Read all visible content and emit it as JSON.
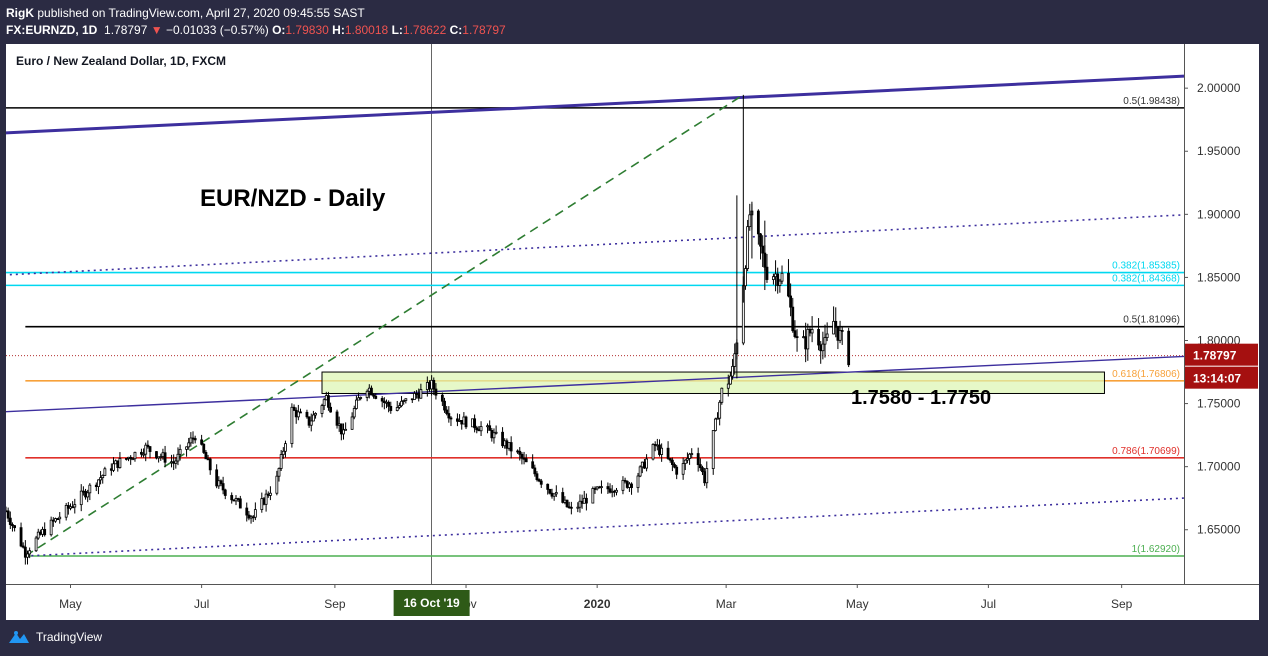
{
  "header": {
    "author": "RigK",
    "published": "published on TradingView.com, April 27, 2020 09:45:55 SAST",
    "symbol": "FX:EURNZD, 1D",
    "last": "1.78797",
    "down_arrow": "▼",
    "change": "−0.01033 (−0.57%)",
    "open_label": "O:",
    "open": "1.79830",
    "high_label": "H:",
    "high": "1.80018",
    "low_label": "L:",
    "low": "1.78622",
    "close_label": "C:",
    "close": "1.78797"
  },
  "footer": {
    "brand": "TradingView",
    "logo_icon": "tradingview-logo-icon"
  },
  "colors": {
    "background": "#ffffff",
    "frame": "#2b2b43",
    "up": "#26a69a",
    "down": "#ef5350",
    "candle": "#000000",
    "trendline": "#3d2f9e",
    "fib_black": "#000000",
    "fib_cyan": "#00d8f0",
    "fib_orange": "#f7a13a",
    "fib_red": "#e0302a",
    "fib_green": "#4caf50",
    "fib_dash": "#2e7d32",
    "zone_fill": "#dcf5b0",
    "price_badge": "#a51010"
  },
  "chart_data": {
    "type": "candlestick",
    "title": "Euro / New Zealand Dollar, 1D, FXCM",
    "annotation_title": "EUR/NZD - Daily",
    "zone_label": "1.7580 - 1.7750",
    "zone": {
      "low": 1.758,
      "high": 1.775,
      "start": "2019-08-26",
      "end": "2020-08-24"
    },
    "ylim": [
      1.607,
      2.035
    ],
    "xlim": [
      "2019-04-01",
      "2020-09-30"
    ],
    "y_ticks": [
      "2.00000",
      "1.95000",
      "1.90000",
      "1.85000",
      "1.80000",
      "1.75000",
      "1.70000",
      "1.65000"
    ],
    "x_ticks": [
      {
        "date": "2019-05-01",
        "label": "May"
      },
      {
        "date": "2019-07-01",
        "label": "Jul"
      },
      {
        "date": "2019-09-01",
        "label": "Sep"
      },
      {
        "date": "2019-11-01",
        "label": "Nov"
      },
      {
        "date": "2020-01-01",
        "label": "2020",
        "bold": true
      },
      {
        "date": "2020-03-01",
        "label": "Mar"
      },
      {
        "date": "2020-05-01",
        "label": "May"
      },
      {
        "date": "2020-07-01",
        "label": "Jul"
      },
      {
        "date": "2020-09-01",
        "label": "Sep"
      }
    ],
    "crosshair": {
      "date": "2019-10-16",
      "label": "16 Oct '19"
    },
    "last_price": {
      "value": 1.78797,
      "label": "1.78797",
      "countdown": "13:14:07"
    },
    "fib_levels": [
      {
        "value": 1.98438,
        "label": "0.5(1.98438)",
        "color": "#000000",
        "start": "2019-04-01"
      },
      {
        "value": 1.85385,
        "label": "0.382(1.85385)",
        "color": "#00d8f0",
        "start": "2019-04-01"
      },
      {
        "value": 1.84368,
        "label": "0.382(1.84368)",
        "color": "#00d8f0",
        "start": "2019-04-01"
      },
      {
        "value": 1.81096,
        "label": "0.5(1.81096)",
        "color": "#000000",
        "start": "2019-04-10"
      },
      {
        "value": 1.76806,
        "label": "0.618(1.76806)",
        "color": "#f7a13a",
        "start": "2019-04-10"
      },
      {
        "value": 1.70699,
        "label": "0.786(1.70699)",
        "color": "#e0302a",
        "start": "2019-04-10"
      },
      {
        "value": 1.6292,
        "label": "1(1.62920)",
        "color": "#4caf50",
        "start": "2019-04-10"
      }
    ],
    "trendlines": [
      {
        "from": [
          "2019-03-31",
          1.9645
        ],
        "to": [
          "2020-09-30",
          2.0095
        ],
        "style": "solid",
        "width": 3
      },
      {
        "from": [
          "2019-03-31",
          1.7435
        ],
        "to": [
          "2020-09-30",
          1.7874
        ],
        "style": "solid",
        "width": 1.4
      },
      {
        "from": [
          "2019-03-31",
          1.8519
        ],
        "to": [
          "2020-09-30",
          1.8996
        ],
        "style": "dotted",
        "width": 1.6
      },
      {
        "from": [
          "2019-04-10",
          1.6292
        ],
        "to": [
          "2020-09-30",
          1.6751
        ],
        "style": "dotted",
        "width": 1.6
      },
      {
        "from": [
          "2019-04-10",
          1.6292
        ],
        "to": [
          "2020-03-09",
          1.9947
        ],
        "style": "dashed",
        "width": 1.6,
        "color": "#2e7d32"
      },
      {
        "from": [
          "2020-03-09",
          1.9947
        ],
        "to": [
          "2020-03-09",
          1.9947
        ],
        "style": "solid",
        "width": 1
      }
    ],
    "close_path": [
      [
        "2019-04-01",
        1.665
      ],
      [
        "2019-04-10",
        1.632
      ],
      [
        "2019-04-18",
        1.648
      ],
      [
        "2019-05-05",
        1.675
      ],
      [
        "2019-05-20",
        1.7
      ],
      [
        "2019-06-05",
        1.715
      ],
      [
        "2019-06-18",
        1.703
      ],
      [
        "2019-06-28",
        1.725
      ],
      [
        "2019-07-08",
        1.687
      ],
      [
        "2019-07-25",
        1.66
      ],
      [
        "2019-08-05",
        1.69
      ],
      [
        "2019-08-12",
        1.745
      ],
      [
        "2019-08-20",
        1.735
      ],
      [
        "2019-08-28",
        1.755
      ],
      [
        "2019-09-05",
        1.725
      ],
      [
        "2019-09-15",
        1.765
      ],
      [
        "2019-09-28",
        1.745
      ],
      [
        "2019-10-16",
        1.765
      ],
      [
        "2019-10-25",
        1.74
      ],
      [
        "2019-11-10",
        1.73
      ],
      [
        "2019-11-25",
        1.71
      ],
      [
        "2019-12-08",
        1.685
      ],
      [
        "2019-12-20",
        1.665
      ],
      [
        "2019-12-31",
        1.68
      ],
      [
        "2020-01-18",
        1.688
      ],
      [
        "2020-01-28",
        1.717
      ],
      [
        "2020-02-08",
        1.695
      ],
      [
        "2020-02-15",
        1.715
      ],
      [
        "2020-02-20",
        1.69
      ],
      [
        "2020-02-28",
        1.76
      ],
      [
        "2020-03-04",
        1.775
      ],
      [
        "2020-03-08",
        1.83
      ],
      [
        "2020-03-12",
        1.9
      ],
      [
        "2020-03-20",
        1.855
      ],
      [
        "2020-03-28",
        1.85
      ],
      [
        "2020-04-04",
        1.79
      ],
      [
        "2020-04-10",
        1.81
      ],
      [
        "2020-04-16",
        1.795
      ],
      [
        "2020-04-20",
        1.815
      ],
      [
        "2020-04-27",
        1.788
      ]
    ],
    "spikes": [
      {
        "date": "2020-03-06",
        "high": 1.915,
        "low": 1.77
      },
      {
        "date": "2020-03-09",
        "high": 1.9947,
        "low": 1.83
      },
      {
        "date": "2020-03-13",
        "high": 1.91,
        "low": 1.865
      },
      {
        "date": "2020-03-19",
        "high": 1.895,
        "low": 1.84
      }
    ]
  }
}
